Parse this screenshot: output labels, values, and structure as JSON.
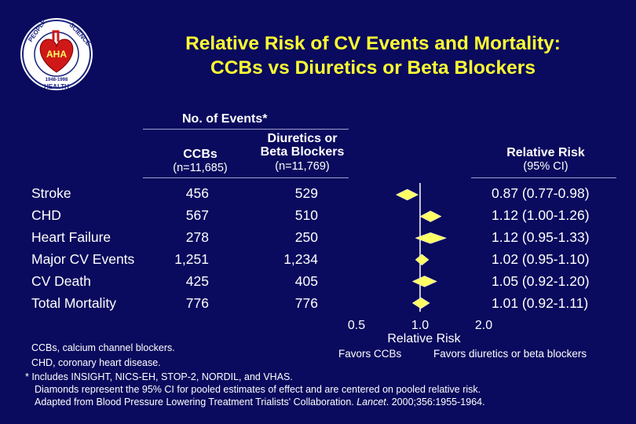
{
  "logo": {
    "text_top_left": "PEOPLE",
    "text_top_right": "SCIENCE",
    "text_bottom": "HEALTH",
    "years": "1948-1998",
    "separator": "AHA"
  },
  "title": {
    "line1": "Relative Risk of CV Events and Mortality:",
    "line2": "CCBs vs Diuretics or Beta Blockers"
  },
  "table_header": {
    "events_group": "No. of Events*",
    "col_ccb_name": "CCBs",
    "col_ccb_n": "(n=11,685)",
    "col_div_name_1": "Diuretics or",
    "col_div_name_2": "Beta Blockers",
    "col_div_n": "(n=11,769)",
    "col_rr_name": "Relative Risk",
    "col_rr_ci": "(95% CI)"
  },
  "rows": [
    {
      "label": "Stroke",
      "ccb": "456",
      "div": "529",
      "rr_text": "0.87 (0.77-0.98)"
    },
    {
      "label": "CHD",
      "ccb": "567",
      "div": "510",
      "rr_text": "1.12 (1.00-1.26)"
    },
    {
      "label": "Heart Failure",
      "ccb": "278",
      "div": "250",
      "rr_text": "1.12 (0.95-1.33)"
    },
    {
      "label": "Major CV Events",
      "ccb": "1,251",
      "div": "1,234",
      "rr_text": "1.02 (0.95-1.10)"
    },
    {
      "label": "CV Death",
      "ccb": "425",
      "div": "405",
      "rr_text": "1.05 (0.92-1.20)"
    },
    {
      "label": "Total Mortality",
      "ccb": "776",
      "div": "776",
      "rr_text": "1.01 (0.92-1.11)"
    }
  ],
  "chart_data": {
    "type": "forest",
    "xscale": "log",
    "xlim": [
      0.5,
      2.0
    ],
    "reference": 1.0,
    "xticks": [
      "0.5",
      "1.0",
      "2.0"
    ],
    "xlabel": "Relative Risk",
    "favors_left": "Favors CCBs",
    "favors_right": "Favors diuretics or beta blockers",
    "points": [
      {
        "category": "Stroke",
        "rr": 0.87,
        "lo": 0.77,
        "hi": 0.98
      },
      {
        "category": "CHD",
        "rr": 1.12,
        "lo": 1.0,
        "hi": 1.26
      },
      {
        "category": "Heart Failure",
        "rr": 1.12,
        "lo": 0.95,
        "hi": 1.33
      },
      {
        "category": "Major CV Events",
        "rr": 1.02,
        "lo": 0.95,
        "hi": 1.1
      },
      {
        "category": "CV Death",
        "rr": 1.05,
        "lo": 0.92,
        "hi": 1.2
      },
      {
        "category": "Total Mortality",
        "rr": 1.01,
        "lo": 0.92,
        "hi": 1.11
      }
    ]
  },
  "footnotes": {
    "line1": "CCBs, calcium channel blockers.",
    "line2": "CHD, coronary heart disease.",
    "line3": "* Includes INSIGHT, NICS-EH, STOP-2, NORDIL, and VHAS.",
    "line4": "Diamonds represent the 95% CI for pooled estimates of effect and are centered on pooled relative risk.",
    "line5_pre": "Adapted from Blood Pressure Lowering Treatment Trialists' Collaboration. ",
    "line5_journal": "Lancet",
    "line5_post": ". 2000;356:1955-1964."
  },
  "colors": {
    "background": "#0a0a5e",
    "title": "#ffff33",
    "diamond": "#ffff66",
    "text": "#ffffff",
    "rule": "#a0a0d0"
  }
}
